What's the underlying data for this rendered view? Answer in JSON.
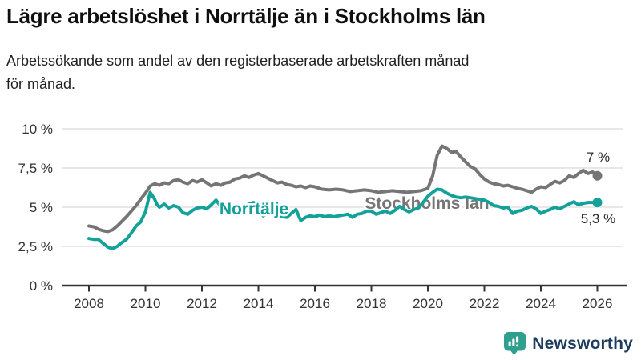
{
  "header": {
    "title": "Lägre arbetslöshet i Norrtälje än i Stockholms län",
    "subtitle_lines": [
      "Arbetssökande som andel av den registerbaserade arbetskraften månad",
      "för månad."
    ]
  },
  "footer": {
    "brand": "Newsworthy"
  },
  "colors": {
    "stockholm_gray": "#757575",
    "norrtalje_teal": "#13a19a",
    "axis": "#333333",
    "gridline": "#d9d9d9",
    "tick_text": "#333333",
    "end_label_text": "#2b2b2b",
    "logo_bubble": "#2fa08f",
    "logo_text": "#1d3c5e"
  },
  "chart_data": {
    "type": "line",
    "title": "Lägre arbetslöshet i Norrtälje än i Stockholms län",
    "xlabel": "",
    "ylabel": "Arbetssökande som andel av den registerbaserade arbetskraften (%)",
    "grid": "horizontal",
    "legend_position": "inline-labels",
    "x_axis": {
      "range": [
        2007.75,
        2026.3
      ],
      "ticks": [
        2008,
        2010,
        2012,
        2014,
        2016,
        2018,
        2020,
        2022,
        2024,
        2026
      ]
    },
    "y_axis": {
      "range": [
        0,
        10
      ],
      "tick_values": [
        0,
        2.5,
        5,
        7.5,
        10
      ],
      "tick_labels": [
        "0 %",
        "2,5 %",
        "5 %",
        "7,5 %",
        "10 %"
      ]
    },
    "series": [
      {
        "name": "Stockholms län",
        "color": "#757575",
        "end_label": "7 %",
        "end_value": 7.0,
        "points": [
          [
            2008.0,
            3.8
          ],
          [
            2008.17,
            3.75
          ],
          [
            2008.33,
            3.6
          ],
          [
            2008.5,
            3.5
          ],
          [
            2008.67,
            3.45
          ],
          [
            2008.83,
            3.55
          ],
          [
            2009.0,
            3.8
          ],
          [
            2009.17,
            4.1
          ],
          [
            2009.33,
            4.4
          ],
          [
            2009.5,
            4.75
          ],
          [
            2009.67,
            5.1
          ],
          [
            2009.83,
            5.5
          ],
          [
            2010.0,
            5.9
          ],
          [
            2010.17,
            6.35
          ],
          [
            2010.33,
            6.5
          ],
          [
            2010.5,
            6.4
          ],
          [
            2010.67,
            6.55
          ],
          [
            2010.83,
            6.5
          ],
          [
            2011.0,
            6.7
          ],
          [
            2011.17,
            6.75
          ],
          [
            2011.33,
            6.6
          ],
          [
            2011.5,
            6.5
          ],
          [
            2011.67,
            6.7
          ],
          [
            2011.83,
            6.6
          ],
          [
            2012.0,
            6.75
          ],
          [
            2012.17,
            6.55
          ],
          [
            2012.33,
            6.35
          ],
          [
            2012.5,
            6.5
          ],
          [
            2012.67,
            6.4
          ],
          [
            2012.83,
            6.55
          ],
          [
            2013.0,
            6.6
          ],
          [
            2013.17,
            6.8
          ],
          [
            2013.33,
            6.85
          ],
          [
            2013.5,
            7.0
          ],
          [
            2013.67,
            6.9
          ],
          [
            2013.83,
            7.05
          ],
          [
            2014.0,
            7.15
          ],
          [
            2014.17,
            7.0
          ],
          [
            2014.33,
            6.85
          ],
          [
            2014.5,
            6.7
          ],
          [
            2014.67,
            6.55
          ],
          [
            2014.83,
            6.6
          ],
          [
            2015.0,
            6.45
          ],
          [
            2015.17,
            6.4
          ],
          [
            2015.33,
            6.3
          ],
          [
            2015.5,
            6.35
          ],
          [
            2015.67,
            6.25
          ],
          [
            2015.83,
            6.35
          ],
          [
            2016.0,
            6.3
          ],
          [
            2016.25,
            6.15
          ],
          [
            2016.5,
            6.1
          ],
          [
            2016.75,
            6.15
          ],
          [
            2017.0,
            6.1
          ],
          [
            2017.25,
            6.0
          ],
          [
            2017.5,
            6.05
          ],
          [
            2017.75,
            6.1
          ],
          [
            2018.0,
            6.05
          ],
          [
            2018.25,
            5.95
          ],
          [
            2018.5,
            6.0
          ],
          [
            2018.75,
            6.05
          ],
          [
            2019.0,
            6.0
          ],
          [
            2019.25,
            5.95
          ],
          [
            2019.5,
            6.0
          ],
          [
            2019.75,
            6.05
          ],
          [
            2020.0,
            6.2
          ],
          [
            2020.17,
            7.0
          ],
          [
            2020.33,
            8.3
          ],
          [
            2020.5,
            8.9
          ],
          [
            2020.67,
            8.75
          ],
          [
            2020.83,
            8.5
          ],
          [
            2021.0,
            8.55
          ],
          [
            2021.17,
            8.2
          ],
          [
            2021.33,
            7.9
          ],
          [
            2021.5,
            7.6
          ],
          [
            2021.67,
            7.45
          ],
          [
            2021.83,
            7.1
          ],
          [
            2022.0,
            6.8
          ],
          [
            2022.17,
            6.6
          ],
          [
            2022.33,
            6.5
          ],
          [
            2022.5,
            6.45
          ],
          [
            2022.67,
            6.35
          ],
          [
            2022.83,
            6.4
          ],
          [
            2023.0,
            6.3
          ],
          [
            2023.17,
            6.2
          ],
          [
            2023.33,
            6.15
          ],
          [
            2023.5,
            6.05
          ],
          [
            2023.67,
            5.95
          ],
          [
            2023.83,
            6.15
          ],
          [
            2024.0,
            6.3
          ],
          [
            2024.17,
            6.25
          ],
          [
            2024.33,
            6.45
          ],
          [
            2024.5,
            6.65
          ],
          [
            2024.67,
            6.55
          ],
          [
            2024.83,
            6.7
          ],
          [
            2025.0,
            7.0
          ],
          [
            2025.17,
            6.9
          ],
          [
            2025.33,
            7.15
          ],
          [
            2025.5,
            7.35
          ],
          [
            2025.67,
            7.15
          ],
          [
            2025.83,
            7.25
          ],
          [
            2026.0,
            7.0
          ]
        ]
      },
      {
        "name": "Norrtälje",
        "color": "#13a19a",
        "end_label": "5,3 %",
        "end_value": 5.3,
        "points": [
          [
            2008.0,
            3.0
          ],
          [
            2008.17,
            2.95
          ],
          [
            2008.33,
            2.95
          ],
          [
            2008.5,
            2.7
          ],
          [
            2008.67,
            2.45
          ],
          [
            2008.83,
            2.35
          ],
          [
            2009.0,
            2.5
          ],
          [
            2009.17,
            2.75
          ],
          [
            2009.33,
            2.95
          ],
          [
            2009.5,
            3.35
          ],
          [
            2009.67,
            3.8
          ],
          [
            2009.83,
            4.05
          ],
          [
            2010.0,
            4.7
          ],
          [
            2010.08,
            5.3
          ],
          [
            2010.17,
            5.95
          ],
          [
            2010.33,
            5.5
          ],
          [
            2010.42,
            5.15
          ],
          [
            2010.5,
            5.0
          ],
          [
            2010.67,
            5.2
          ],
          [
            2010.83,
            4.95
          ],
          [
            2011.0,
            5.1
          ],
          [
            2011.17,
            5.0
          ],
          [
            2011.33,
            4.65
          ],
          [
            2011.5,
            4.55
          ],
          [
            2011.67,
            4.8
          ],
          [
            2011.83,
            4.95
          ],
          [
            2012.0,
            5.0
          ],
          [
            2012.17,
            4.9
          ],
          [
            2012.33,
            5.15
          ],
          [
            2012.5,
            5.45
          ],
          [
            2012.67,
            5.05
          ],
          [
            2012.83,
            4.95
          ],
          [
            2013.0,
            4.85
          ],
          [
            2013.17,
            4.8
          ],
          [
            2013.33,
            4.95
          ],
          [
            2013.5,
            5.1
          ],
          [
            2013.67,
            5.2
          ],
          [
            2013.83,
            5.3
          ],
          [
            2014.0,
            5.0
          ],
          [
            2014.17,
            4.45
          ],
          [
            2014.33,
            4.65
          ],
          [
            2014.5,
            4.55
          ],
          [
            2014.67,
            4.65
          ],
          [
            2014.83,
            4.4
          ],
          [
            2015.0,
            4.35
          ],
          [
            2015.17,
            4.6
          ],
          [
            2015.33,
            4.85
          ],
          [
            2015.5,
            4.15
          ],
          [
            2015.67,
            4.35
          ],
          [
            2015.83,
            4.45
          ],
          [
            2016.0,
            4.4
          ],
          [
            2016.17,
            4.5
          ],
          [
            2016.33,
            4.4
          ],
          [
            2016.5,
            4.45
          ],
          [
            2016.67,
            4.4
          ],
          [
            2016.83,
            4.45
          ],
          [
            2017.0,
            4.5
          ],
          [
            2017.17,
            4.55
          ],
          [
            2017.33,
            4.35
          ],
          [
            2017.5,
            4.55
          ],
          [
            2017.67,
            4.6
          ],
          [
            2017.83,
            4.75
          ],
          [
            2018.0,
            4.75
          ],
          [
            2018.17,
            4.55
          ],
          [
            2018.33,
            4.65
          ],
          [
            2018.5,
            4.75
          ],
          [
            2018.67,
            4.6
          ],
          [
            2018.83,
            4.8
          ],
          [
            2019.0,
            5.05
          ],
          [
            2019.17,
            4.85
          ],
          [
            2019.33,
            4.7
          ],
          [
            2019.5,
            4.85
          ],
          [
            2019.67,
            4.95
          ],
          [
            2019.83,
            5.3
          ],
          [
            2020.0,
            5.7
          ],
          [
            2020.17,
            5.95
          ],
          [
            2020.33,
            6.15
          ],
          [
            2020.5,
            6.1
          ],
          [
            2020.67,
            5.9
          ],
          [
            2020.83,
            5.75
          ],
          [
            2021.0,
            5.65
          ],
          [
            2021.17,
            5.6
          ],
          [
            2021.33,
            5.65
          ],
          [
            2021.5,
            5.6
          ],
          [
            2021.67,
            5.55
          ],
          [
            2021.83,
            5.5
          ],
          [
            2022.0,
            5.45
          ],
          [
            2022.17,
            5.3
          ],
          [
            2022.33,
            5.1
          ],
          [
            2022.5,
            5.05
          ],
          [
            2022.67,
            4.95
          ],
          [
            2022.83,
            5.0
          ],
          [
            2023.0,
            4.6
          ],
          [
            2023.17,
            4.75
          ],
          [
            2023.33,
            4.8
          ],
          [
            2023.5,
            4.95
          ],
          [
            2023.67,
            5.05
          ],
          [
            2023.83,
            4.9
          ],
          [
            2024.0,
            4.6
          ],
          [
            2024.17,
            4.75
          ],
          [
            2024.33,
            4.85
          ],
          [
            2024.5,
            5.0
          ],
          [
            2024.67,
            4.9
          ],
          [
            2024.83,
            5.05
          ],
          [
            2025.0,
            5.2
          ],
          [
            2025.17,
            5.35
          ],
          [
            2025.33,
            5.15
          ],
          [
            2025.5,
            5.25
          ],
          [
            2025.67,
            5.3
          ],
          [
            2025.83,
            5.3
          ],
          [
            2026.0,
            5.3
          ]
        ]
      }
    ]
  }
}
